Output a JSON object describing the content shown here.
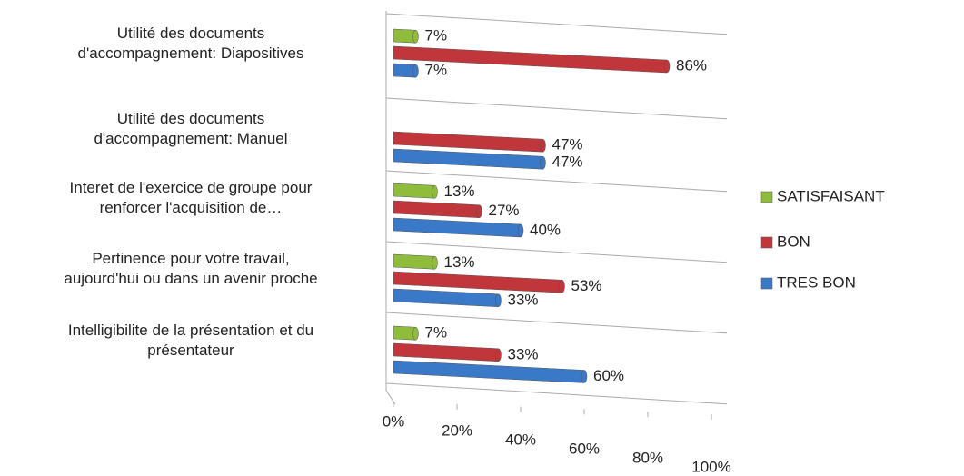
{
  "chart_data": {
    "type": "bar",
    "orientation": "horizontal",
    "categories": [
      "Utilité des documents\nd'accompagnement: Diapositives",
      "Utilité des documents\nd'accompagnement: Manuel",
      "Interet de l'exercice de groupe pour\nrenforcer l'acquisition de…",
      "Pertinence pour votre travail,\naujourd'hui ou dans un avenir proche",
      "Intelligibilite de la présentation et du\nprésentateur"
    ],
    "series": [
      {
        "name": "SATISFAISANT",
        "color": "#8fbc3a",
        "values": [
          7,
          null,
          13,
          13,
          7
        ],
        "value_labels": [
          "7%",
          null,
          "13%",
          "13%",
          "7%"
        ]
      },
      {
        "name": "BON",
        "color": "#c0363a",
        "values": [
          86,
          47,
          27,
          53,
          33
        ],
        "value_labels": [
          "86%",
          "47%",
          "27%",
          "53%",
          "33%"
        ]
      },
      {
        "name": "TRES BON",
        "color": "#3a78c8",
        "values": [
          7,
          47,
          40,
          33,
          60
        ],
        "value_labels": [
          "7%",
          "47%",
          "40%",
          "33%",
          "60%"
        ]
      }
    ],
    "xlim": [
      0,
      100
    ],
    "xticks": [
      {
        "value": 0,
        "label": "0%"
      },
      {
        "value": 20,
        "label": "20%"
      },
      {
        "value": 40,
        "label": "40%"
      },
      {
        "value": 60,
        "label": "60%"
      },
      {
        "value": 80,
        "label": "80%"
      },
      {
        "value": 100,
        "label": "100%"
      }
    ],
    "grid": true,
    "legend": "right"
  }
}
